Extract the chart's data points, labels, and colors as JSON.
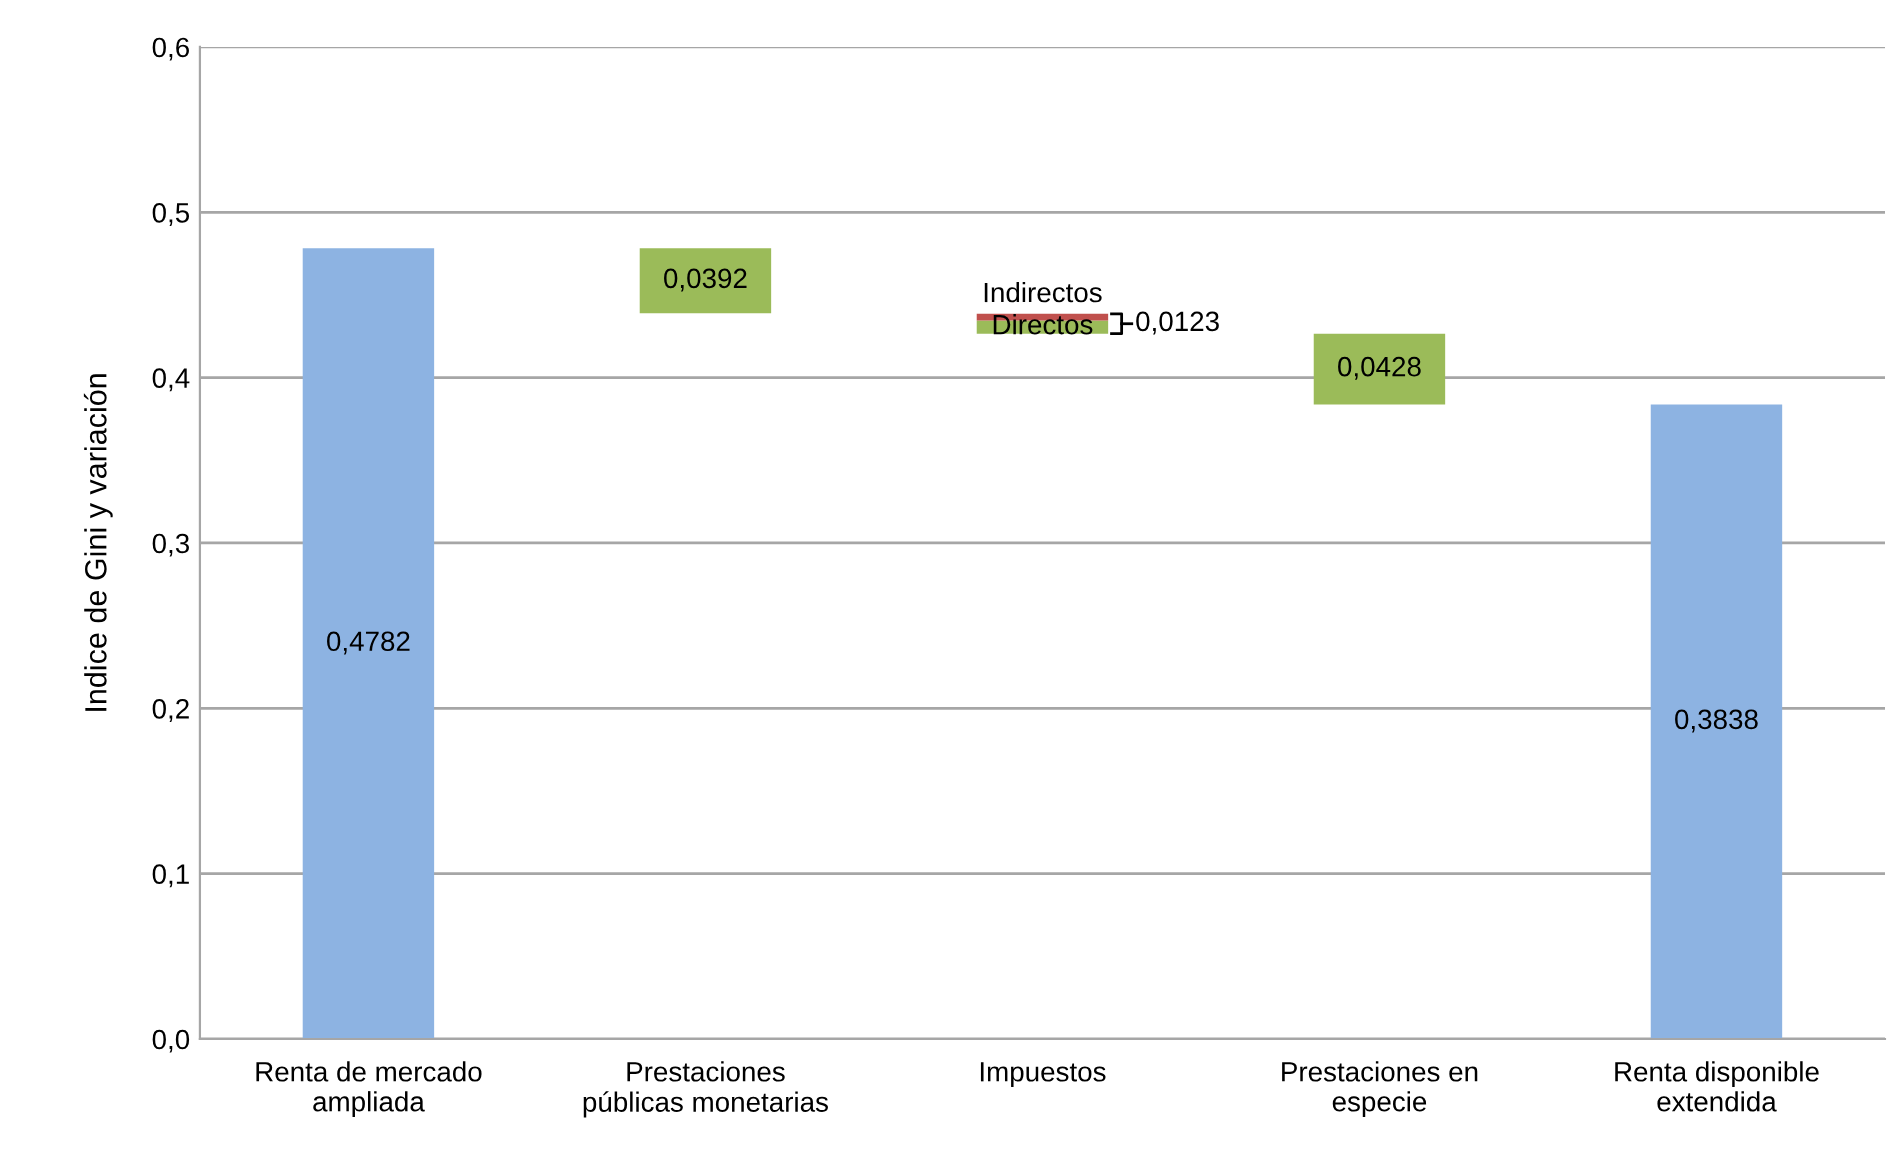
{
  "chart_data": {
    "type": "bar",
    "ylabel": "Indice de Gini y variación",
    "categories": [
      "Renta de mercado\nampliada",
      "Prestaciones\npúblicas monetarias",
      "Impuestos",
      "Prestaciones en\nespecie",
      "Renta disponible\nextendida"
    ],
    "series": [
      {
        "color": "#8db3e2",
        "values": [
          0.4782,
          null,
          null,
          null,
          0.3838
        ],
        "base": [
          0,
          null,
          null,
          null,
          0
        ],
        "value_labels": [
          "0,4782",
          null,
          null,
          null,
          "0,3838"
        ]
      },
      {
        "color": "#9bbb59",
        "values": [
          null,
          0.0392,
          null,
          0.0428,
          null
        ],
        "base": [
          null,
          0.439,
          null,
          0.3838,
          null
        ],
        "value_labels": [
          null,
          "0,0392",
          null,
          "0,0428",
          null
        ]
      },
      {
        "name": "Directos",
        "color": "#9bbb59",
        "values": [
          null,
          null,
          0.008,
          null,
          null
        ],
        "base": [
          null,
          null,
          0.4266,
          null,
          null
        ]
      },
      {
        "name": "Indirectos",
        "color": "#c0504d",
        "values": [
          null,
          null,
          0.004,
          null,
          null
        ],
        "base": [
          null,
          null,
          0.4346,
          null,
          null
        ]
      }
    ],
    "annotations": [
      "0,0123"
    ],
    "ylim": [
      0,
      0.6
    ],
    "yticks": [
      {
        "value": 0,
        "label": "0,0"
      },
      {
        "value": 0.1,
        "label": "0,1"
      },
      {
        "value": 0.2,
        "label": "0,2"
      },
      {
        "value": 0.3,
        "label": "0,3"
      },
      {
        "value": 0.4,
        "label": "0,4"
      },
      {
        "value": 0.5,
        "label": "0,5"
      },
      {
        "value": 0.6,
        "label": "0,6"
      }
    ],
    "grid": "y",
    "legend": false
  }
}
